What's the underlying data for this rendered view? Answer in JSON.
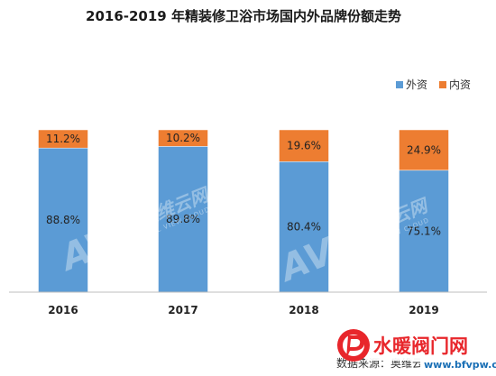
{
  "chart_data": {
    "type": "bar",
    "stacked": true,
    "title": "2016-2019 年精装修卫浴市场国内外品牌份额走势",
    "categories": [
      "2016",
      "2017",
      "2018",
      "2019"
    ],
    "series": [
      {
        "name": "外资",
        "color": "#5b9bd5",
        "values": [
          88.8,
          89.8,
          80.4,
          75.1
        ],
        "labels": [
          "88.8%",
          "89.8%",
          "80.4%",
          "75.1%"
        ]
      },
      {
        "name": "内资",
        "color": "#ed7d31",
        "values": [
          11.2,
          10.2,
          19.6,
          24.9
        ],
        "labels": [
          "11.2%",
          "10.2%",
          "19.6%",
          "24.9%"
        ]
      }
    ],
    "ylim": [
      0,
      100
    ],
    "legend_position": "top-right",
    "grid": false
  },
  "watermark": {
    "brand": "AVC",
    "cn": "奥维云网",
    "en": "ALL VIEW CLOUD"
  },
  "source_note": "数据来源：奥维云网",
  "site_logo": {
    "name": "水暖阀门网",
    "url": "www.bfvpw.com",
    "mark_color": "#e8262b"
  }
}
